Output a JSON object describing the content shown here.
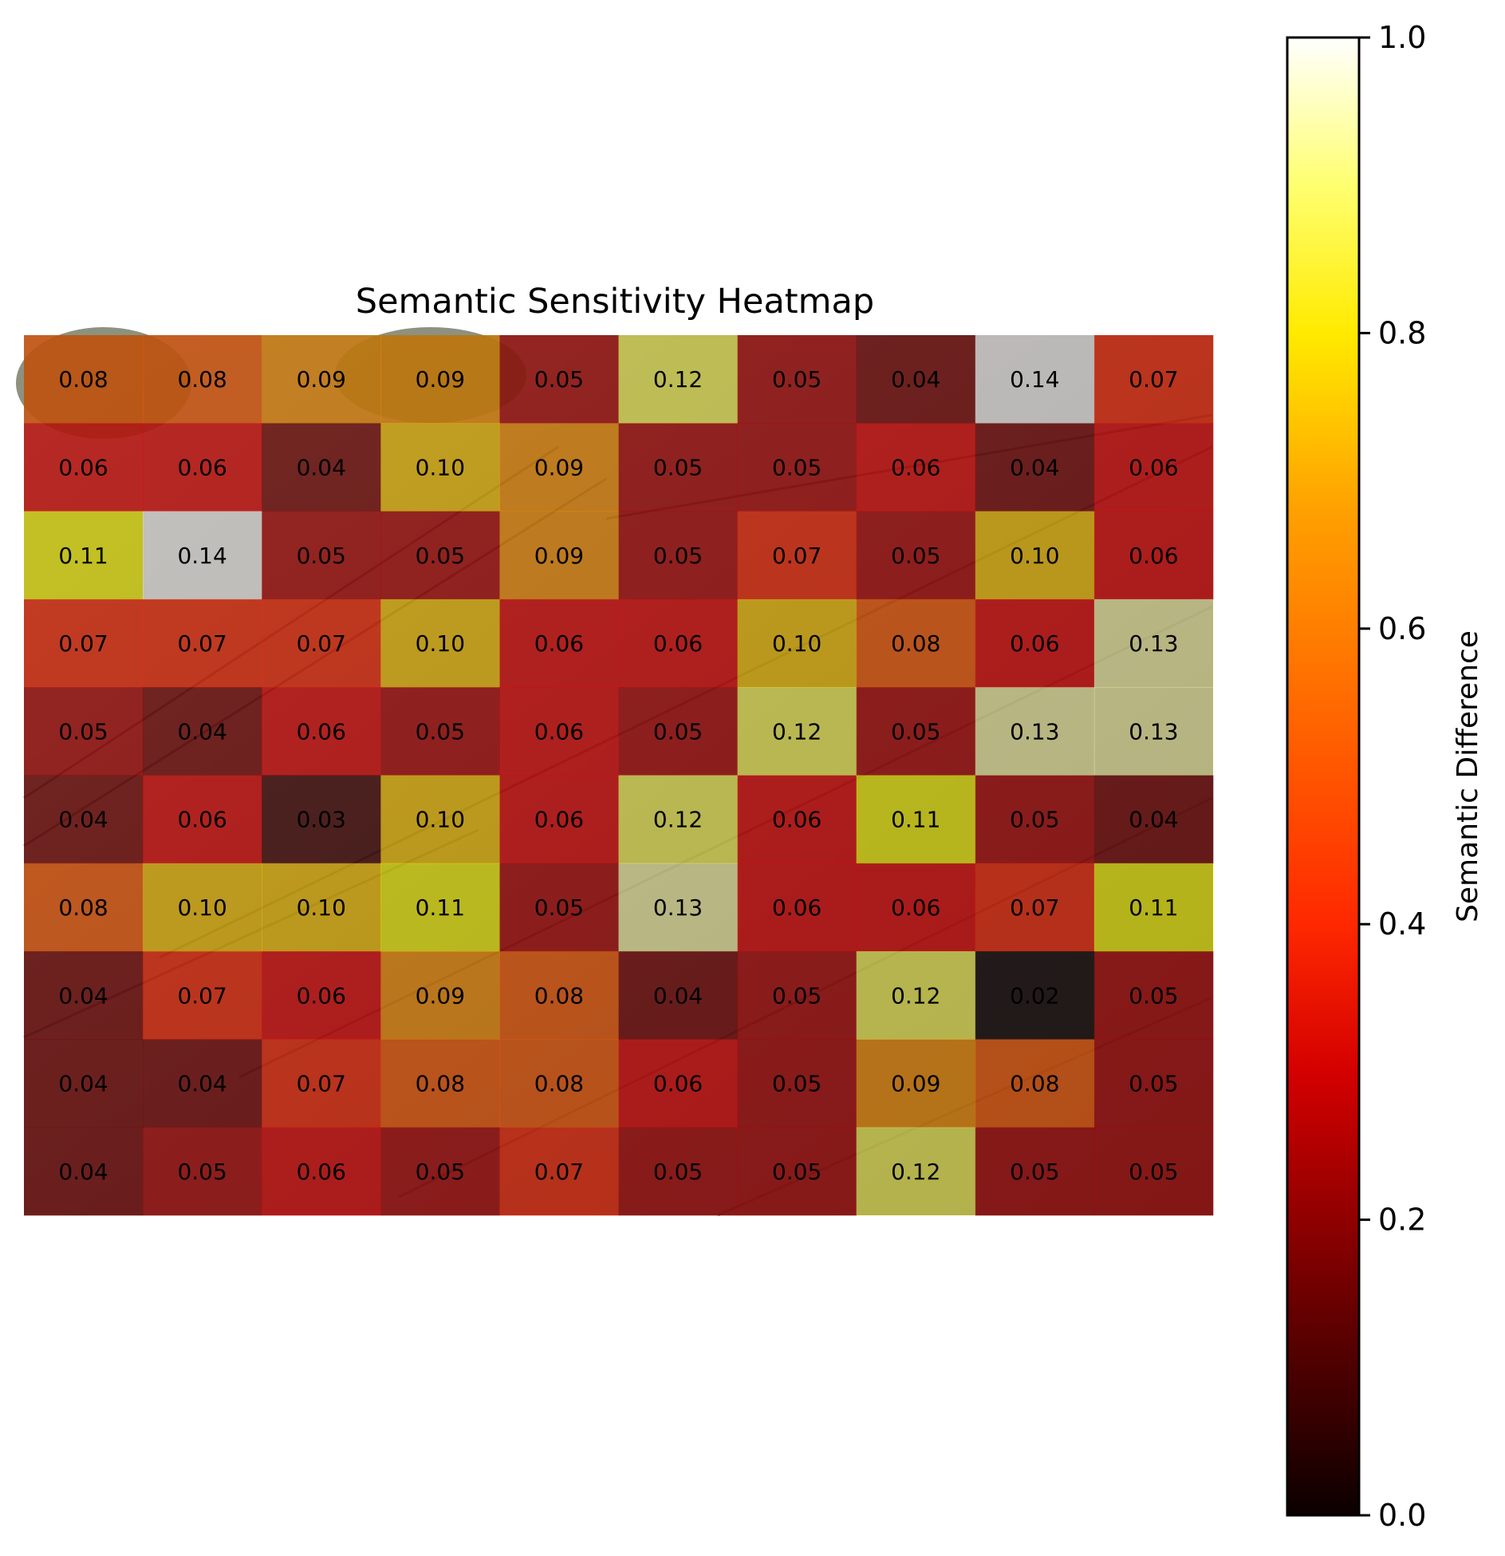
{
  "chart_data": {
    "type": "heatmap",
    "title": "Semantic Sensitivity Heatmap",
    "rows": 10,
    "cols": 10,
    "values": [
      [
        0.08,
        0.08,
        0.09,
        0.09,
        0.05,
        0.12,
        0.05,
        0.04,
        0.14,
        0.07
      ],
      [
        0.06,
        0.06,
        0.04,
        0.1,
        0.09,
        0.05,
        0.05,
        0.06,
        0.04,
        0.06
      ],
      [
        0.11,
        0.14,
        0.05,
        0.05,
        0.09,
        0.05,
        0.07,
        0.05,
        0.1,
        0.06
      ],
      [
        0.07,
        0.07,
        0.07,
        0.1,
        0.06,
        0.06,
        0.1,
        0.08,
        0.06,
        0.13
      ],
      [
        0.05,
        0.04,
        0.06,
        0.05,
        0.06,
        0.05,
        0.12,
        0.05,
        0.13,
        0.13
      ],
      [
        0.04,
        0.06,
        0.03,
        0.1,
        0.06,
        0.12,
        0.06,
        0.11,
        0.05,
        0.04
      ],
      [
        0.08,
        0.1,
        0.1,
        0.11,
        0.05,
        0.13,
        0.06,
        0.06,
        0.07,
        0.11
      ],
      [
        0.04,
        0.07,
        0.06,
        0.09,
        0.08,
        0.04,
        0.05,
        0.12,
        0.02,
        0.05
      ],
      [
        0.04,
        0.04,
        0.07,
        0.08,
        0.08,
        0.06,
        0.05,
        0.09,
        0.08,
        0.05
      ],
      [
        0.04,
        0.05,
        0.06,
        0.05,
        0.07,
        0.05,
        0.05,
        0.12,
        0.05,
        0.05
      ]
    ],
    "value_range": [
      0.02,
      0.14
    ],
    "colormap": "hot",
    "background": "roof photograph",
    "colorbar": {
      "label": "Semantic Difference",
      "range": [
        0.0,
        1.0
      ],
      "ticks": [
        "0.0",
        "0.2",
        "0.4",
        "0.6",
        "0.8",
        "1.0"
      ]
    }
  }
}
